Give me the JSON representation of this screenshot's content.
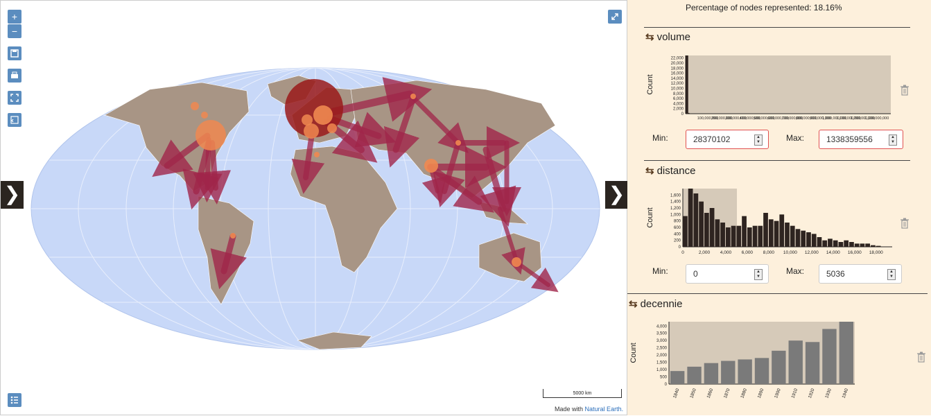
{
  "map": {
    "zoom_in_label": "+",
    "zoom_out_label": "−",
    "scale_label": "5000 km",
    "attribution_prefix": "Made with",
    "attribution_link": "Natural Earth.",
    "colors": {
      "ocean": "#c8d8f8",
      "land": "#a89585",
      "flow": "#a0254a",
      "node": "#f08850",
      "big_node": "#9a1a1a"
    }
  },
  "panel": {
    "percentage_text": "Percentage of nodes represented: 18.16%",
    "filters": [
      {
        "title": "volume",
        "ylabel": "Count",
        "min_label": "Min:",
        "max_label": "Max:",
        "min_value": "28370102",
        "max_value": "1338359556",
        "min_invalid": true,
        "max_invalid": true
      },
      {
        "title": "distance",
        "ylabel": "Count",
        "min_label": "Min:",
        "max_label": "Max:",
        "min_value": "0",
        "max_value": "5036",
        "min_invalid": false,
        "max_invalid": false
      },
      {
        "title": "decennie",
        "ylabel": "Count"
      }
    ]
  },
  "chart_data": [
    {
      "type": "bar",
      "title": "volume",
      "xlabel": "",
      "ylabel": "Count",
      "ylim": [
        0,
        23000
      ],
      "yticks": [
        "0",
        "2,000",
        "4,000",
        "6,000",
        "8,000",
        "10,000",
        "12,000",
        "14,000",
        "16,000",
        "18,000",
        "20,000",
        "22,000"
      ],
      "xticks": [
        "100,000,000",
        "200,000,000",
        "300,000,000",
        "400,000,000",
        "500,000,000",
        "600,000,000",
        "700,000,000",
        "800,000,000",
        "900,000,000",
        "1,000,000,000",
        "1,100,000,000",
        "1,200,000,000",
        "1,300,000,000"
      ],
      "values": [
        23000,
        23000,
        300,
        80,
        40,
        20,
        10,
        5,
        3,
        2,
        1,
        1,
        1,
        1,
        1,
        1,
        1,
        1,
        1,
        1
      ]
    },
    {
      "type": "bar",
      "title": "distance",
      "xlabel": "",
      "ylabel": "Count",
      "ylim": [
        0,
        1800
      ],
      "yticks": [
        "0",
        "200",
        "400",
        "600",
        "800",
        "1,000",
        "1,200",
        "1,400",
        "1,600"
      ],
      "xticks": [
        "0",
        "2,000",
        "4,000",
        "6,000",
        "8,000",
        "10,000",
        "12,000",
        "14,000",
        "16,000",
        "18,000"
      ],
      "xlim": [
        0,
        19500
      ],
      "selection": [
        0,
        5036
      ],
      "bin_width": 500,
      "values": [
        950,
        1800,
        1650,
        1400,
        1050,
        1200,
        850,
        750,
        600,
        650,
        650,
        950,
        600,
        650,
        650,
        1050,
        850,
        800,
        1000,
        750,
        650,
        550,
        500,
        450,
        400,
        300,
        200,
        250,
        200,
        150,
        200,
        150,
        100,
        100,
        100,
        50,
        30
      ]
    },
    {
      "type": "bar",
      "title": "decennie",
      "xlabel": "",
      "ylabel": "Count",
      "ylim": [
        0,
        4300
      ],
      "yticks": [
        "0",
        "500",
        "1,000",
        "1,500",
        "2,000",
        "2,500",
        "3,000",
        "3,500",
        "4,000"
      ],
      "categories": [
        "1840",
        "1850",
        "1860",
        "1870",
        "1880",
        "1890",
        "1900",
        "1910",
        "1920",
        "1930",
        "1940"
      ],
      "values": [
        900,
        1200,
        1450,
        1600,
        1700,
        1800,
        2300,
        3000,
        2900,
        3800,
        4300
      ]
    }
  ]
}
